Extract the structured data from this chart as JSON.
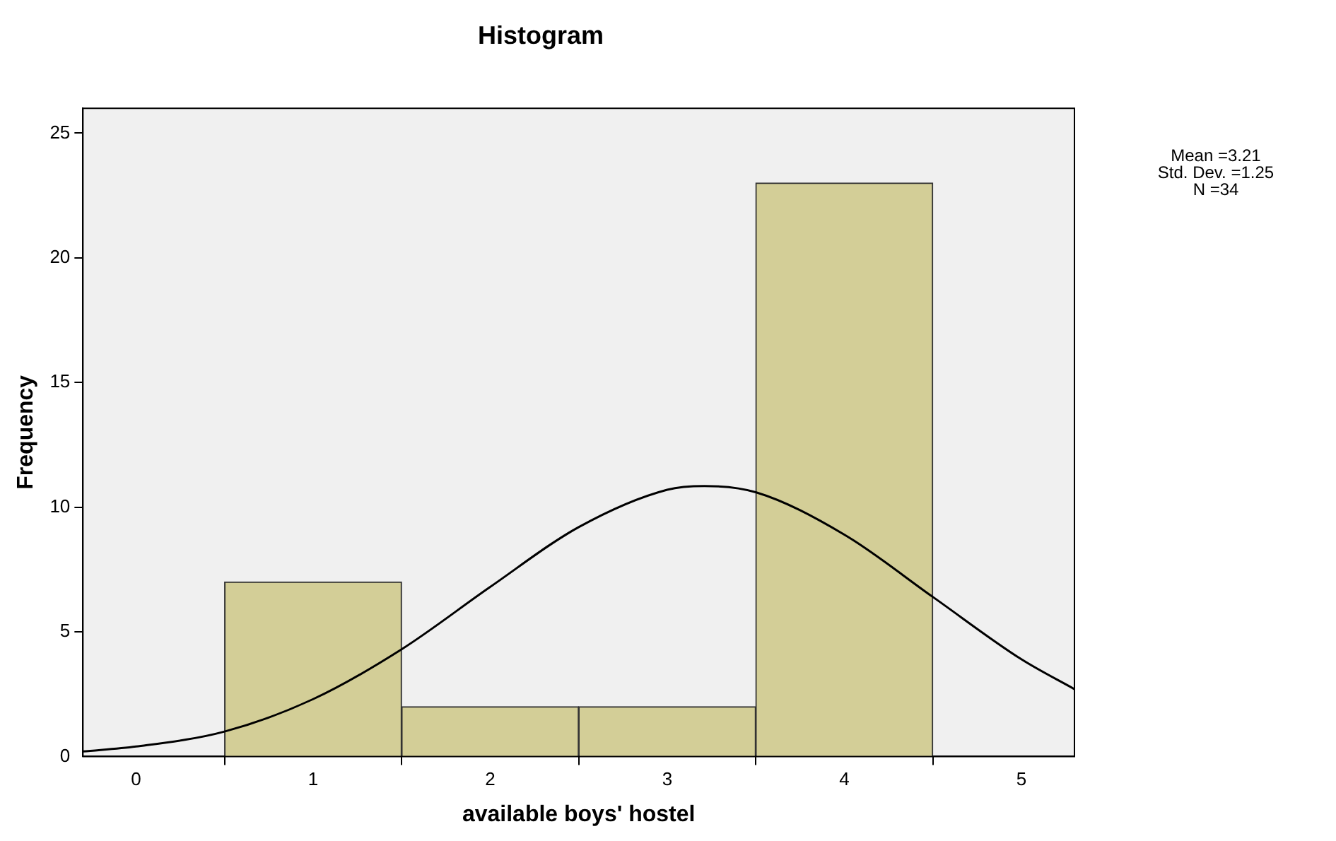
{
  "chart_data": {
    "type": "histogram",
    "title": "Histogram",
    "xlabel": "available boys' hostel",
    "ylabel": "Frequency",
    "bins": [
      0.5,
      1.5,
      2.5,
      3.5,
      4.5
    ],
    "values": [
      7,
      2,
      2,
      23
    ],
    "color": "#d3ce97",
    "series": [
      {
        "type": "line",
        "color": "#000000",
        "x": [
          -0.3,
          0,
          0.5,
          1,
          1.5,
          2,
          2.5,
          3,
          3.21,
          3.5,
          4,
          4.5,
          5,
          5.3
        ],
        "values": [
          0.2,
          0.4,
          1.0,
          2.3,
          4.3,
          6.8,
          9.2,
          10.7,
          10.85,
          10.6,
          8.9,
          6.4,
          3.9,
          2.7
        ]
      }
    ],
    "xlim": [
      -0.3,
      5.3
    ],
    "xticks": [
      0,
      1,
      2,
      3,
      4,
      5
    ],
    "ylim": [
      0,
      26
    ],
    "yticks": [
      0,
      5,
      10,
      15,
      20,
      25
    ],
    "grid": false,
    "legend": false,
    "marker": "none",
    "annotations": [
      "Mean =3.21",
      "Std. Dev. =1.25",
      "N =34"
    ]
  }
}
